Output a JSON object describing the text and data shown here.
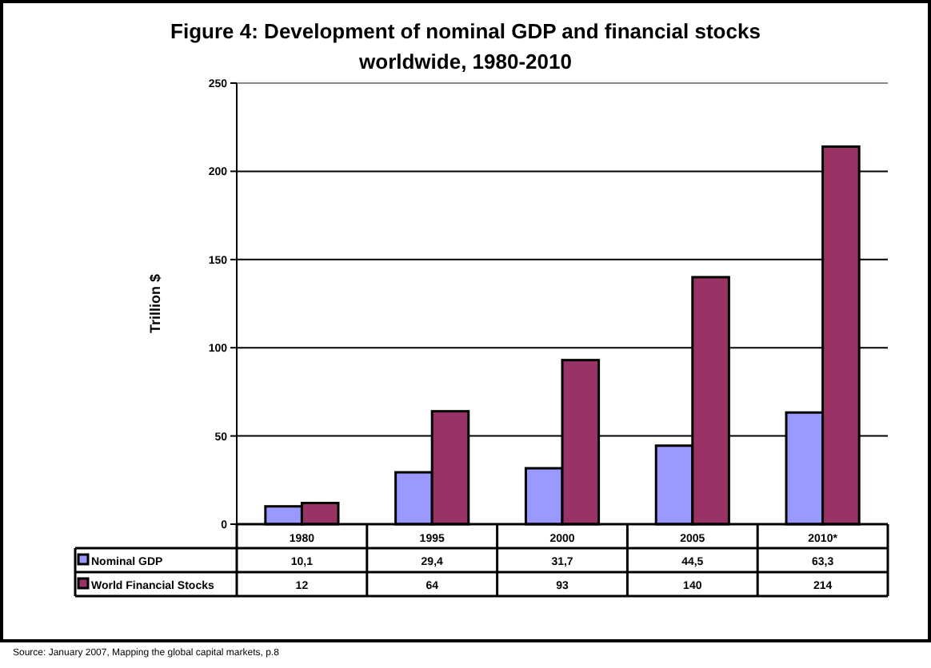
{
  "chart_data": {
    "type": "bar",
    "title": "Figure 4: Development of nominal GDP and financial stocks worldwide, 1980-2010",
    "ylabel": "Trillion $",
    "categories": [
      "1980",
      "1995",
      "2000",
      "2005",
      "2010*"
    ],
    "series": [
      {
        "name": "Nominal GDP",
        "color": "#9999ff",
        "values": [
          10.1,
          29.4,
          31.7,
          44.5,
          63.3
        ],
        "value_labels": [
          "10,1",
          "29,4",
          "31,7",
          "44,5",
          "63,3"
        ]
      },
      {
        "name": "World Financial Stocks",
        "color": "#993366",
        "values": [
          12,
          64,
          93,
          140,
          214
        ],
        "value_labels": [
          "12",
          "64",
          "93",
          "140",
          "214"
        ]
      }
    ],
    "ylim": [
      0,
      250
    ],
    "yticks": [
      0,
      50,
      100,
      150,
      200,
      250
    ],
    "grid": "y",
    "legend": "bottom",
    "annotations": [
      "Source: January 2007, Mapping the global capital markets, p.8"
    ]
  }
}
